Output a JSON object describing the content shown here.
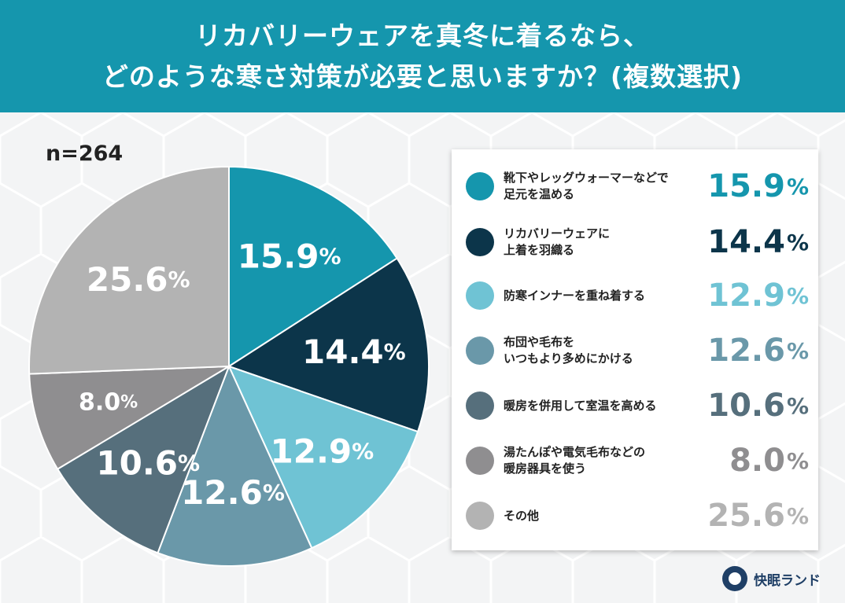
{
  "header": {
    "line1": "リカバリーウェアを真冬に着るなら、",
    "line2": "どのような寒さ対策が必要と思いますか？(複数選択)"
  },
  "sample": "n=264",
  "logo": {
    "icon": "moon-logo-icon",
    "text": "快眠ランド"
  },
  "colors": {
    "header_bg": "#1596ad",
    "background": "#f3f4f5"
  },
  "chart_data": {
    "type": "pie",
    "start": "12 o'clock",
    "direction": "clockwise",
    "unit": "%",
    "slices": [
      {
        "label": "靴下やレッグウォーマーなどで\n足元を温める",
        "value": 15.9,
        "display": "15.9",
        "color": "#1596ad"
      },
      {
        "label": "リカバリーウェアに\n上着を羽織る",
        "value": 14.4,
        "display": "14.4",
        "color": "#0c354a"
      },
      {
        "label": "防寒インナーを重ね着する",
        "value": 12.9,
        "display": "12.9",
        "color": "#6fc3d4"
      },
      {
        "label": "布団や毛布を\nいつもより多めにかける",
        "value": 12.6,
        "display": "12.6",
        "color": "#6a98a9"
      },
      {
        "label": "暖房を併用して室温を高める",
        "value": 10.6,
        "display": "10.6",
        "color": "#566f7c"
      },
      {
        "label": "湯たんぽや電気毛布などの\n暖房器具を使う",
        "value": 8.0,
        "display": "8.0",
        "color": "#8f8e90"
      },
      {
        "label": "その他",
        "value": 25.6,
        "display": "25.6",
        "color": "#b3b3b3"
      }
    ]
  }
}
